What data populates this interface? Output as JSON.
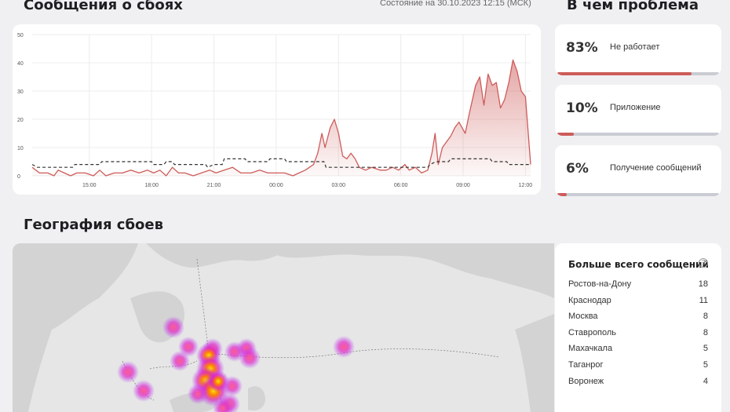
{
  "header": {
    "title": "Сообщения о сбоях",
    "status": "Состояние на 30.10.2023 12:15 (МСК)",
    "problems_title": "В чем проблема"
  },
  "chart_data": {
    "type": "area",
    "title": "",
    "xlabel": "",
    "ylabel": "",
    "ylim": [
      0,
      50
    ],
    "yticks": [
      "0",
      "10",
      "20",
      "30",
      "40",
      "50"
    ],
    "xticks": [
      "15:00",
      "18:00",
      "21:00",
      "00:00",
      "03:00",
      "06:00",
      "09:00",
      "12:00"
    ],
    "x_range_hours": [
      12.25,
      36.25
    ],
    "grid": true,
    "series": [
      {
        "kind": "reports",
        "color": "#cd5c5a",
        "points": [
          [
            12.25,
            3
          ],
          [
            12.6,
            1
          ],
          [
            13,
            1
          ],
          [
            13.3,
            0
          ],
          [
            13.5,
            2
          ],
          [
            13.8,
            1
          ],
          [
            14.1,
            0
          ],
          [
            14.4,
            1
          ],
          [
            14.8,
            1
          ],
          [
            15.2,
            0
          ],
          [
            15.5,
            2
          ],
          [
            15.8,
            0
          ],
          [
            16.2,
            1
          ],
          [
            16.6,
            1
          ],
          [
            17,
            2
          ],
          [
            17.4,
            1
          ],
          [
            17.8,
            2
          ],
          [
            18.1,
            1
          ],
          [
            18.4,
            2
          ],
          [
            18.7,
            0
          ],
          [
            19,
            3
          ],
          [
            19.3,
            1
          ],
          [
            19.6,
            1
          ],
          [
            20,
            0
          ],
          [
            20.4,
            1
          ],
          [
            20.8,
            2
          ],
          [
            21.1,
            1
          ],
          [
            21.5,
            2
          ],
          [
            21.9,
            3
          ],
          [
            22.3,
            1
          ],
          [
            22.8,
            1
          ],
          [
            23.2,
            2
          ],
          [
            23.6,
            1
          ],
          [
            24,
            1
          ],
          [
            24.4,
            1
          ],
          [
            24.8,
            0
          ],
          [
            25.1,
            1
          ],
          [
            25.4,
            2
          ],
          [
            25.6,
            3
          ],
          [
            25.8,
            4
          ],
          [
            26,
            8
          ],
          [
            26.2,
            15
          ],
          [
            26.35,
            10
          ],
          [
            26.6,
            17
          ],
          [
            26.8,
            20
          ],
          [
            27,
            15
          ],
          [
            27.2,
            7
          ],
          [
            27.4,
            6
          ],
          [
            27.6,
            8
          ],
          [
            27.8,
            6
          ],
          [
            28,
            3
          ],
          [
            28.3,
            2
          ],
          [
            28.6,
            3
          ],
          [
            29,
            2
          ],
          [
            29.3,
            2
          ],
          [
            29.6,
            3
          ],
          [
            29.9,
            2
          ],
          [
            30.2,
            4
          ],
          [
            30.4,
            2
          ],
          [
            30.7,
            3
          ],
          [
            31,
            1
          ],
          [
            31.3,
            2
          ],
          [
            31.5,
            8
          ],
          [
            31.65,
            15
          ],
          [
            31.8,
            4
          ],
          [
            32,
            10
          ],
          [
            32.2,
            12
          ],
          [
            32.4,
            14
          ],
          [
            32.6,
            17
          ],
          [
            32.8,
            19
          ],
          [
            33.1,
            15
          ],
          [
            33.3,
            22
          ],
          [
            33.6,
            32
          ],
          [
            33.8,
            35
          ],
          [
            34,
            25
          ],
          [
            34.2,
            36
          ],
          [
            34.4,
            32
          ],
          [
            34.6,
            33
          ],
          [
            34.8,
            24
          ],
          [
            35,
            27
          ],
          [
            35.2,
            33
          ],
          [
            35.4,
            41
          ],
          [
            35.6,
            37
          ],
          [
            35.8,
            30
          ],
          [
            36,
            28
          ],
          [
            36.25,
            4
          ]
        ]
      },
      {
        "kind": "typical",
        "color": "#333333",
        "dashed": true,
        "points": [
          [
            12.25,
            4
          ],
          [
            12.5,
            3
          ],
          [
            14.2,
            3
          ],
          [
            14.3,
            4
          ],
          [
            15.5,
            4
          ],
          [
            15.6,
            5
          ],
          [
            18,
            5
          ],
          [
            18.1,
            4
          ],
          [
            18.6,
            4
          ],
          [
            18.7,
            5
          ],
          [
            19,
            5
          ],
          [
            19.1,
            4
          ],
          [
            20.6,
            4
          ],
          [
            20.7,
            3
          ],
          [
            21,
            4
          ],
          [
            21.4,
            4
          ],
          [
            21.5,
            6
          ],
          [
            22.5,
            6
          ],
          [
            22.6,
            5
          ],
          [
            23.6,
            5
          ],
          [
            23.7,
            6
          ],
          [
            24.4,
            6
          ],
          [
            24.5,
            5
          ],
          [
            26.3,
            5
          ],
          [
            26.4,
            3
          ],
          [
            31.3,
            3
          ],
          [
            31.4,
            4
          ],
          [
            31.7,
            5
          ],
          [
            32.3,
            5
          ],
          [
            32.4,
            6
          ],
          [
            34.3,
            6
          ],
          [
            34.4,
            5
          ],
          [
            35.1,
            5
          ],
          [
            35.2,
            4
          ],
          [
            36.25,
            4
          ]
        ]
      }
    ]
  },
  "problems": [
    {
      "percent": "83%",
      "label": "Не работает",
      "value": 0.83
    },
    {
      "percent": "10%",
      "label": "Приложение",
      "value": 0.1
    },
    {
      "percent": "6%",
      "label": "Получение сообщений",
      "value": 0.06
    }
  ],
  "geo": {
    "title": "География сбоев",
    "list_title": "Больше всего сообщений",
    "help": "?",
    "cities": [
      {
        "name": "Ростов-на-Дону",
        "count": "18"
      },
      {
        "name": "Краснодар",
        "count": "11"
      },
      {
        "name": "Москва",
        "count": "8"
      },
      {
        "name": "Ставрополь",
        "count": "8"
      },
      {
        "name": "Махачкала",
        "count": "5"
      },
      {
        "name": "Таганрог",
        "count": "5"
      },
      {
        "name": "Воронеж",
        "count": "4"
      }
    ]
  }
}
